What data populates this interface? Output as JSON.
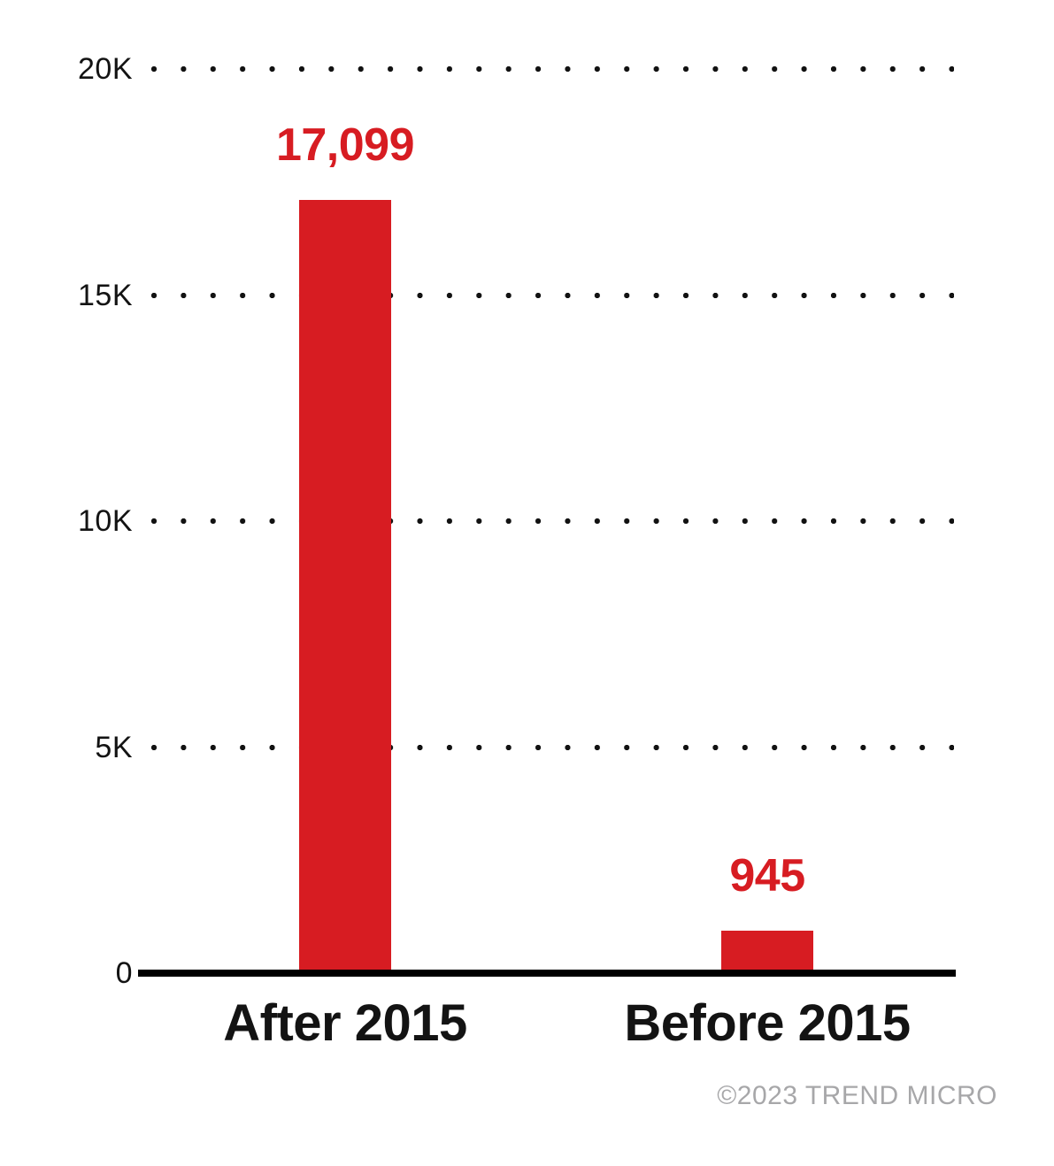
{
  "chart_data": {
    "type": "bar",
    "title": "",
    "xlabel": "",
    "ylabel": "",
    "categories": [
      "After 2015",
      "Before 2015"
    ],
    "values": [
      17099,
      945
    ],
    "value_labels": [
      "17,099",
      "945"
    ],
    "ylim": [
      0,
      20000
    ],
    "yticks": [
      {
        "value": 20000,
        "label": "20K"
      },
      {
        "value": 15000,
        "label": "15K"
      },
      {
        "value": 10000,
        "label": "10K"
      },
      {
        "value": 5000,
        "label": "5K"
      },
      {
        "value": 0,
        "label": "0"
      }
    ],
    "grid": "horizontal-dotted",
    "legend": "none",
    "bar_color": "#D71C22",
    "value_label_color": "#D71C22",
    "axis_color": "#000000",
    "tick_color": "#131313"
  },
  "footer": {
    "copyright": "©2023 TREND MICRO",
    "color": "#A7A7A9"
  }
}
